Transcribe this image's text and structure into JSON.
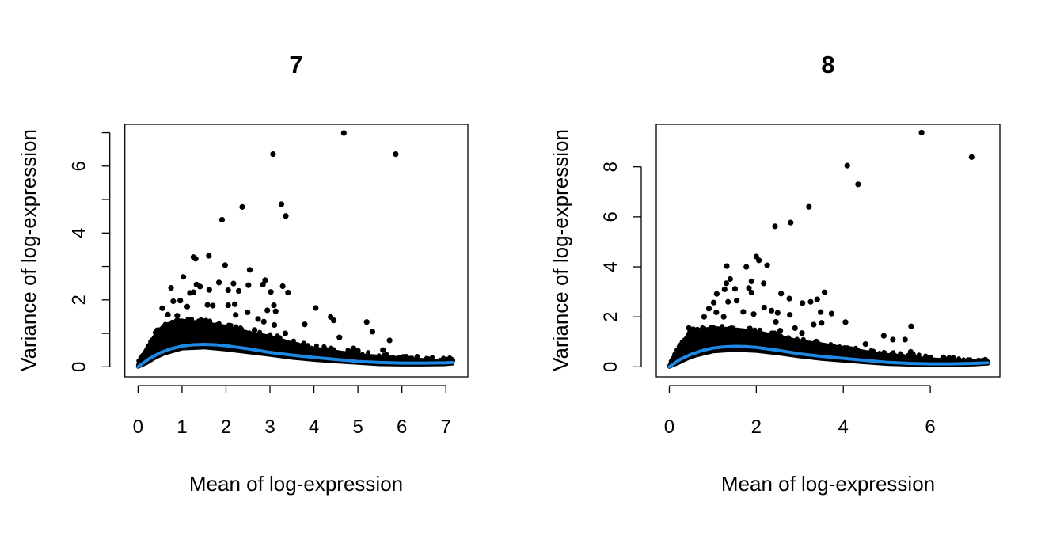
{
  "chart_data": [
    {
      "type": "scatter",
      "title": "7",
      "xlabel": "Mean of log-expression",
      "ylabel": "Variance of log-expression",
      "xlim": [
        -0.3,
        7.5
      ],
      "ylim": [
        -0.3,
        7.25
      ],
      "x_ticks": [
        0,
        1,
        2,
        3,
        4,
        5,
        6,
        7
      ],
      "x_tick_labels": [
        "0",
        "1",
        "2",
        "3",
        "4",
        "5",
        "6",
        "7"
      ],
      "y_ticks": [
        0,
        1,
        2,
        3,
        4,
        5,
        6,
        7
      ],
      "y_tick_labels": [
        "0",
        "",
        "2",
        "",
        "4",
        "",
        "6",
        ""
      ],
      "grid": false,
      "point_color": "#000000",
      "trend_color": "#1E88E5",
      "points": [
        [
          4.68,
          6.99
        ],
        [
          3.07,
          6.36
        ],
        [
          5.86,
          6.36
        ],
        [
          3.26,
          4.86
        ],
        [
          3.36,
          4.51
        ],
        [
          2.37,
          4.78
        ],
        [
          1.91,
          4.4
        ],
        [
          1.61,
          3.32
        ],
        [
          1.26,
          3.28
        ],
        [
          1.31,
          3.23
        ],
        [
          1.98,
          3.04
        ],
        [
          2.54,
          2.9
        ],
        [
          1.03,
          2.69
        ],
        [
          2.89,
          2.59
        ],
        [
          2.84,
          2.46
        ],
        [
          3.02,
          2.24
        ],
        [
          3.29,
          2.41
        ],
        [
          3.41,
          2.22
        ],
        [
          4.04,
          1.76
        ],
        [
          4.38,
          1.49
        ],
        [
          4.45,
          1.39
        ],
        [
          5.2,
          1.34
        ],
        [
          5.33,
          1.05
        ],
        [
          3.79,
          1.27
        ],
        [
          4.58,
          0.88
        ],
        [
          5.72,
          0.79
        ],
        [
          5.57,
          0.5
        ],
        [
          7.15,
          0.19
        ],
        [
          0.75,
          2.36
        ],
        [
          2.17,
          2.49
        ],
        [
          2.29,
          2.27
        ],
        [
          2.51,
          2.44
        ],
        [
          2.05,
          2.29
        ],
        [
          1.62,
          2.3
        ],
        [
          1.84,
          2.52
        ],
        [
          3.09,
          1.84
        ],
        [
          3.13,
          1.66
        ],
        [
          2.94,
          1.69
        ],
        [
          2.22,
          1.55
        ],
        [
          2.49,
          1.63
        ],
        [
          2.2,
          1.87
        ],
        [
          2.05,
          1.84
        ],
        [
          1.33,
          2.46
        ],
        [
          1.41,
          2.4
        ],
        [
          1.18,
          2.21
        ],
        [
          1.26,
          2.23
        ],
        [
          0.8,
          1.96
        ],
        [
          0.96,
          1.98
        ],
        [
          1.12,
          1.8
        ],
        [
          1.58,
          1.85
        ],
        [
          1.7,
          1.83
        ],
        [
          0.55,
          1.75
        ],
        [
          0.68,
          1.56
        ],
        [
          0.89,
          1.53
        ],
        [
          2.73,
          1.43
        ],
        [
          2.86,
          1.35
        ],
        [
          3.1,
          1.25
        ],
        [
          2.65,
          1.1
        ],
        [
          3.35,
          1.0
        ],
        [
          4.9,
          0.55
        ],
        [
          5.0,
          0.48
        ],
        [
          6.1,
          0.3
        ],
        [
          6.35,
          0.3
        ]
      ],
      "dense_band": {
        "x": [
          0.0,
          0.2,
          0.4,
          0.6,
          1.0,
          1.5,
          2.0,
          2.5,
          3.0,
          3.5,
          4.0,
          4.5,
          5.0,
          5.5,
          6.0,
          6.5,
          7.0,
          7.15
        ],
        "upper": [
          0.05,
          0.55,
          0.95,
          1.25,
          1.38,
          1.3,
          1.2,
          1.02,
          0.9,
          0.7,
          0.55,
          0.45,
          0.35,
          0.3,
          0.25,
          0.2,
          0.16,
          0.18
        ],
        "lower": [
          0.0,
          0.12,
          0.28,
          0.4,
          0.55,
          0.58,
          0.52,
          0.44,
          0.36,
          0.27,
          0.21,
          0.16,
          0.12,
          0.08,
          0.07,
          0.07,
          0.08,
          0.1
        ]
      },
      "trend": {
        "x": [
          0.0,
          0.25,
          0.5,
          0.75,
          1.0,
          1.25,
          1.5,
          1.75,
          2.0,
          2.5,
          3.0,
          3.5,
          4.0,
          4.5,
          5.0,
          5.5,
          6.0,
          6.5,
          7.0,
          7.15
        ],
        "y": [
          0.0,
          0.24,
          0.42,
          0.54,
          0.62,
          0.66,
          0.67,
          0.66,
          0.63,
          0.54,
          0.43,
          0.35,
          0.28,
          0.22,
          0.16,
          0.13,
          0.11,
          0.11,
          0.12,
          0.13
        ]
      }
    },
    {
      "type": "scatter",
      "title": "8",
      "xlabel": "Mean of log-expression",
      "ylabel": "Variance of log-expression",
      "xlim": [
        -0.3,
        7.6
      ],
      "ylim": [
        -0.4,
        9.7
      ],
      "x_ticks": [
        0,
        2,
        4,
        6
      ],
      "x_tick_labels": [
        "0",
        "2",
        "4",
        "6"
      ],
      "y_ticks": [
        0,
        2,
        4,
        6,
        8
      ],
      "y_tick_labels": [
        "0",
        "2",
        "4",
        "6",
        "8"
      ],
      "grid": false,
      "point_color": "#000000",
      "trend_color": "#1E88E5",
      "points": [
        [
          5.8,
          9.37
        ],
        [
          6.95,
          8.39
        ],
        [
          4.09,
          8.05
        ],
        [
          4.34,
          7.3
        ],
        [
          3.21,
          6.4
        ],
        [
          2.79,
          5.77
        ],
        [
          2.43,
          5.62
        ],
        [
          2.0,
          4.41
        ],
        [
          2.06,
          4.26
        ],
        [
          2.25,
          4.06
        ],
        [
          1.32,
          4.03
        ],
        [
          1.77,
          4.0
        ],
        [
          1.4,
          3.51
        ],
        [
          1.31,
          3.34
        ],
        [
          1.89,
          3.42
        ],
        [
          2.17,
          3.34
        ],
        [
          1.51,
          3.12
        ],
        [
          1.27,
          3.1
        ],
        [
          1.83,
          3.15
        ],
        [
          1.89,
          2.97
        ],
        [
          1.09,
          2.92
        ],
        [
          2.57,
          2.93
        ],
        [
          2.76,
          2.73
        ],
        [
          3.57,
          2.98
        ],
        [
          3.4,
          2.7
        ],
        [
          3.25,
          2.6
        ],
        [
          3.06,
          2.55
        ],
        [
          2.18,
          2.37
        ],
        [
          2.35,
          2.25
        ],
        [
          2.49,
          2.16
        ],
        [
          3.48,
          2.19
        ],
        [
          3.73,
          2.13
        ],
        [
          2.77,
          2.08
        ],
        [
          1.94,
          2.11
        ],
        [
          0.91,
          2.33
        ],
        [
          1.02,
          2.57
        ],
        [
          1.08,
          2.18
        ],
        [
          4.05,
          1.79
        ],
        [
          3.32,
          1.69
        ],
        [
          3.5,
          1.76
        ],
        [
          5.56,
          1.62
        ],
        [
          4.93,
          1.24
        ],
        [
          5.14,
          1.09
        ],
        [
          5.42,
          1.09
        ],
        [
          4.51,
          0.91
        ],
        [
          2.89,
          1.55
        ],
        [
          7.32,
          0.17
        ],
        [
          1.35,
          2.6
        ],
        [
          1.55,
          2.65
        ],
        [
          1.7,
          2.2
        ],
        [
          1.25,
          2.0
        ],
        [
          0.8,
          2.0
        ],
        [
          0.45,
          1.55
        ],
        [
          0.55,
          1.5
        ],
        [
          2.45,
          1.8
        ],
        [
          2.55,
          1.45
        ],
        [
          3.05,
          1.35
        ],
        [
          5.5,
          0.45
        ],
        [
          5.55,
          0.6
        ],
        [
          6.3,
          0.38
        ]
      ],
      "dense_band": {
        "x": [
          0.0,
          0.2,
          0.4,
          0.6,
          1.0,
          1.5,
          2.0,
          2.5,
          3.0,
          3.5,
          4.0,
          4.5,
          5.0,
          5.5,
          6.0,
          6.5,
          7.0,
          7.32
        ],
        "upper": [
          0.05,
          0.65,
          1.2,
          1.42,
          1.55,
          1.5,
          1.4,
          1.2,
          1.02,
          0.9,
          0.75,
          0.6,
          0.48,
          0.4,
          0.3,
          0.25,
          0.2,
          0.2
        ],
        "lower": [
          0.0,
          0.15,
          0.32,
          0.45,
          0.62,
          0.68,
          0.64,
          0.54,
          0.42,
          0.32,
          0.25,
          0.18,
          0.12,
          0.09,
          0.08,
          0.08,
          0.1,
          0.13
        ]
      },
      "trend": {
        "x": [
          0.0,
          0.25,
          0.5,
          0.75,
          1.0,
          1.25,
          1.5,
          1.75,
          2.0,
          2.5,
          3.0,
          3.5,
          4.0,
          4.5,
          5.0,
          5.5,
          6.0,
          6.5,
          7.0,
          7.32
        ],
        "y": [
          0.0,
          0.3,
          0.5,
          0.65,
          0.75,
          0.8,
          0.82,
          0.81,
          0.78,
          0.66,
          0.52,
          0.42,
          0.34,
          0.26,
          0.18,
          0.14,
          0.12,
          0.12,
          0.14,
          0.16
        ]
      }
    }
  ]
}
